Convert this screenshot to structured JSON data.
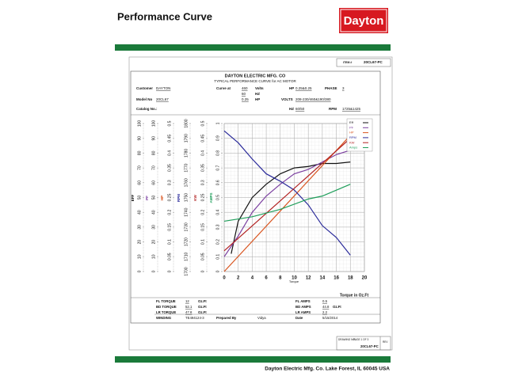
{
  "header": {
    "title": "Performance Curve",
    "logo": "Dayton"
  },
  "item": {
    "label": "ITEM #",
    "value": "20CL67-PC"
  },
  "sheet": {
    "company": "DAYTON ELECTRIC MFG. CO",
    "subtitle": "TYPICAL PERFORMANCE CURVE for AC MOTOR"
  },
  "fields": {
    "customer": {
      "label": "Customer",
      "value": "DAYTON"
    },
    "curve": {
      "label": "Curve at",
      "value": "460",
      "unit": "Volts"
    },
    "hz": {
      "value": "60",
      "unit": "HZ"
    },
    "hp_at": {
      "value": "0.25",
      "unit": "HP"
    },
    "hp": {
      "label": "HP",
      "value": "0.25&0.25"
    },
    "phase": {
      "label": "PHASE",
      "value": "3"
    },
    "model": {
      "label": "Model No",
      "value": "20CL67"
    },
    "volts": {
      "label": "VOLTS",
      "value": "208-230/460&190/380"
    },
    "catalog": {
      "label": "Catalog No.:"
    },
    "hz2": {
      "label": "HZ",
      "value": "60/50"
    },
    "rpm": {
      "label": "RPM",
      "value": "1725&1425"
    }
  },
  "chart_data": {
    "type": "line",
    "xlabel": "Torque",
    "x_axis_title": "Torque in Oz.Ft",
    "xlim": [
      0,
      20
    ],
    "xticks": [
      0,
      2,
      4,
      6,
      8,
      10,
      12,
      14,
      16,
      18,
      20
    ],
    "grid": true,
    "legend": "upper right",
    "axes": [
      {
        "label": "EFF",
        "lim": [
          0,
          100
        ],
        "ticks": [
          0,
          10,
          20,
          30,
          40,
          50,
          60,
          70,
          80,
          90,
          100
        ]
      },
      {
        "label": "PF",
        "lim": [
          0,
          100
        ],
        "ticks": [
          0,
          10,
          20,
          30,
          40,
          50,
          60,
          70,
          80,
          90,
          100
        ]
      },
      {
        "label": "HP",
        "lim": [
          0,
          0.5
        ],
        "ticks": [
          0,
          0.05,
          0.1,
          0.15,
          0.2,
          0.25,
          0.3,
          0.35,
          0.4,
          0.45,
          0.5
        ]
      },
      {
        "label": "RPM",
        "lim": [
          1700,
          1800
        ],
        "ticks": [
          1700,
          1710,
          1720,
          1730,
          1740,
          1750,
          1760,
          1770,
          1780,
          1790,
          1800
        ]
      },
      {
        "label": "KW",
        "lim": [
          0,
          0.5
        ],
        "ticks": [
          0,
          0.05,
          0.1,
          0.15,
          0.2,
          0.25,
          0.3,
          0.35,
          0.4,
          0.45,
          0.5
        ]
      },
      {
        "label": "AMPS",
        "lim": [
          0,
          1
        ],
        "ticks": [
          0,
          0.1,
          0.2,
          0.3,
          0.4,
          0.5,
          0.6,
          0.7,
          0.8,
          0.9,
          1
        ]
      }
    ],
    "series": [
      {
        "name": "Eff",
        "axis": "EFF",
        "color": "#111111",
        "x": [
          1,
          2,
          4,
          6,
          8,
          10,
          12,
          14,
          16,
          18
        ],
        "values": [
          12,
          34,
          50,
          59,
          66,
          70,
          71,
          73,
          73,
          74
        ]
      },
      {
        "name": "PF",
        "axis": "PF",
        "color": "#7b3fa0",
        "x": [
          0,
          2,
          4,
          6,
          8,
          10,
          12,
          14,
          16,
          18
        ],
        "values": [
          10,
          24,
          40,
          51,
          59,
          66,
          69,
          74,
          79,
          82
        ]
      },
      {
        "name": "HP",
        "axis": "HP",
        "color": "#d9541e",
        "x": [
          0,
          18
        ],
        "values": [
          0,
          0.46
        ]
      },
      {
        "name": "RPM",
        "axis": "RPM",
        "color": "#2a2a9a",
        "x": [
          0,
          2,
          4,
          6,
          8,
          10,
          12,
          14,
          16,
          18
        ],
        "values": [
          1795,
          1787,
          1776,
          1766,
          1761,
          1755,
          1745,
          1731,
          1723,
          1711
        ]
      },
      {
        "name": "KW",
        "axis": "KW",
        "color": "#b22222",
        "x": [
          0,
          18
        ],
        "values": [
          0.07,
          0.45
        ]
      },
      {
        "name": "Amps",
        "axis": "AMPS",
        "color": "#1e9e5a",
        "x": [
          0,
          4,
          8,
          12,
          14,
          16,
          18
        ],
        "values": [
          0.34,
          0.37,
          0.42,
          0.49,
          0.51,
          0.55,
          0.59
        ]
      }
    ]
  },
  "ratings": {
    "fl_torque": {
      "label": "FL TORQUE",
      "value": "12",
      "unit": "Oz.Ft"
    },
    "bd_torque": {
      "label": "BD TORQUE",
      "value": "52.1",
      "unit": "Oz.Ft"
    },
    "lr_torque": {
      "label": "LR TORQUE",
      "value": "47.8",
      "unit": "Oz.Ft"
    },
    "fl_amps": {
      "label": "FL AMPS",
      "value": "0.5"
    },
    "bd_amps": {
      "label": "BD AMPS",
      "value": "44.8",
      "unit": "Oz.Ft"
    },
    "lr_amps": {
      "label": "LR AMPS",
      "value": "2.2"
    },
    "winding": {
      "label": "WINDING",
      "value": "TE494124-3"
    },
    "prepared": {
      "label": "Prepared By",
      "value": "Vidya"
    },
    "date": {
      "label": "Date",
      "value": "5/15/2014"
    }
  },
  "drawing": {
    "label": "DRAWING NO.",
    "page": "PAGE  1  OF  3",
    "rev": "REV",
    "number": "20CL67-PC"
  },
  "footer": "Dayton Electric Mfg. Co.  Lake Forest, IL  60045  USA"
}
